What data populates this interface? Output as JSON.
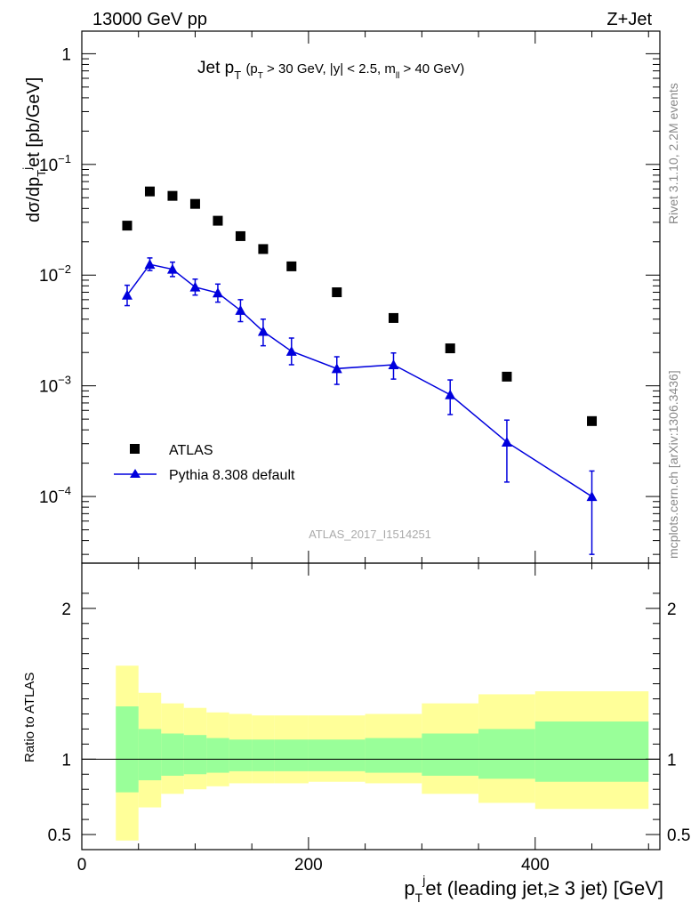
{
  "header": {
    "energy_label": "13000 GeV pp",
    "process_label": "Z+Jet"
  },
  "side_labels": {
    "rivet": "Rivet 3.1.10,  2.2M events",
    "source": "mcplots.cern.ch [arXiv:1306.3436]"
  },
  "watermark": "ATLAS_2017_I1514251",
  "colors": {
    "data": "#000000",
    "mc": "#0000dd",
    "band_inner": "#99ff99",
    "band_outer": "#ffff99"
  },
  "chart_data": [
    {
      "type": "scatter",
      "panel": "main",
      "title_main": "Jet p",
      "title_main_sub": "T",
      "title_cuts": "(p",
      "title_cuts_sub": "T",
      "title_cuts_rest": " > 30 GeV, |y| < 2.5, m",
      "title_cuts_sub2": "ll",
      "title_cuts_end": " > 40 GeV)",
      "ylabel": "dσ/dp",
      "ylabel_sub": "T",
      "ylabel_sup": "j",
      "ylabel_rest": "et [pb/GeV]",
      "yscale": "log",
      "xlim": [
        0,
        510
      ],
      "ylim": [
        2.5e-05,
        1.6
      ],
      "y_ticks": [
        {
          "value": 1,
          "mant": "1",
          "exp": ""
        },
        {
          "value": 0.1,
          "mant": "10",
          "exp": "−1"
        },
        {
          "value": 0.01,
          "mant": "10",
          "exp": "−2"
        },
        {
          "value": 0.001,
          "mant": "10",
          "exp": "−3"
        },
        {
          "value": 0.0001,
          "mant": "10",
          "exp": "−4"
        }
      ],
      "legend": {
        "position": "lower-left",
        "entries": [
          "ATLAS",
          "Pythia 8.308 default"
        ]
      },
      "series": [
        {
          "name": "ATLAS",
          "marker": "square",
          "x": [
            40,
            60,
            80,
            100,
            120,
            140,
            160,
            185,
            225,
            275,
            325,
            375,
            450
          ],
          "y": [
            0.028,
            0.057,
            0.052,
            0.044,
            0.031,
            0.0225,
            0.0172,
            0.012,
            0.007,
            0.0041,
            0.00218,
            0.00121,
            0.00048
          ]
        },
        {
          "name": "Pythia 8.308 default",
          "marker": "triangle",
          "line": true,
          "x": [
            40,
            60,
            80,
            100,
            120,
            140,
            160,
            185,
            225,
            275,
            325,
            375,
            450
          ],
          "y": [
            0.0066,
            0.0125,
            0.0113,
            0.0078,
            0.0069,
            0.0048,
            0.0031,
            0.00205,
            0.00143,
            0.00155,
            0.00083,
            0.00031,
            0.0001
          ],
          "y_low": [
            0.0053,
            0.011,
            0.0097,
            0.0066,
            0.0057,
            0.0038,
            0.0023,
            0.00155,
            0.00103,
            0.00115,
            0.00055,
            0.000135,
            3e-05
          ],
          "y_high": [
            0.0081,
            0.0143,
            0.0131,
            0.0092,
            0.0083,
            0.006,
            0.004,
            0.0027,
            0.00183,
            0.00198,
            0.00113,
            0.00049,
            0.00017
          ]
        }
      ]
    },
    {
      "type": "area",
      "panel": "ratio",
      "ylabel": "Ratio to ATLAS",
      "xlabel": "p",
      "xlabel_sub": "T",
      "xlabel_sup": "j",
      "xlabel_rest": "et (leading jet,≥ 3 jet) [GeV]",
      "xlim": [
        0,
        510
      ],
      "ylim": [
        0.4,
        2.3
      ],
      "x_ticks": [
        0,
        200,
        400
      ],
      "y_ticks": [
        0.5,
        1,
        2
      ],
      "y_tick_labels": [
        "0.5",
        "1",
        "2"
      ],
      "reference": 1,
      "bins": [
        {
          "lo": 30,
          "hi": 50,
          "inner": [
            0.78,
            1.35
          ],
          "outer": [
            0.46,
            1.62
          ]
        },
        {
          "lo": 50,
          "hi": 70,
          "inner": [
            0.86,
            1.2
          ],
          "outer": [
            0.68,
            1.44
          ]
        },
        {
          "lo": 70,
          "hi": 90,
          "inner": [
            0.89,
            1.17
          ],
          "outer": [
            0.77,
            1.37
          ]
        },
        {
          "lo": 90,
          "hi": 110,
          "inner": [
            0.9,
            1.16
          ],
          "outer": [
            0.8,
            1.34
          ]
        },
        {
          "lo": 110,
          "hi": 130,
          "inner": [
            0.91,
            1.14
          ],
          "outer": [
            0.82,
            1.31
          ]
        },
        {
          "lo": 130,
          "hi": 150,
          "inner": [
            0.92,
            1.13
          ],
          "outer": [
            0.84,
            1.3
          ]
        },
        {
          "lo": 150,
          "hi": 170,
          "inner": [
            0.92,
            1.13
          ],
          "outer": [
            0.84,
            1.29
          ]
        },
        {
          "lo": 170,
          "hi": 200,
          "inner": [
            0.92,
            1.13
          ],
          "outer": [
            0.84,
            1.29
          ]
        },
        {
          "lo": 200,
          "hi": 250,
          "inner": [
            0.92,
            1.13
          ],
          "outer": [
            0.85,
            1.29
          ]
        },
        {
          "lo": 250,
          "hi": 300,
          "inner": [
            0.91,
            1.14
          ],
          "outer": [
            0.84,
            1.3
          ]
        },
        {
          "lo": 300,
          "hi": 350,
          "inner": [
            0.89,
            1.17
          ],
          "outer": [
            0.77,
            1.37
          ]
        },
        {
          "lo": 350,
          "hi": 400,
          "inner": [
            0.87,
            1.2
          ],
          "outer": [
            0.71,
            1.43
          ]
        },
        {
          "lo": 400,
          "hi": 500,
          "inner": [
            0.85,
            1.25
          ],
          "outer": [
            0.67,
            1.45
          ]
        }
      ]
    }
  ]
}
